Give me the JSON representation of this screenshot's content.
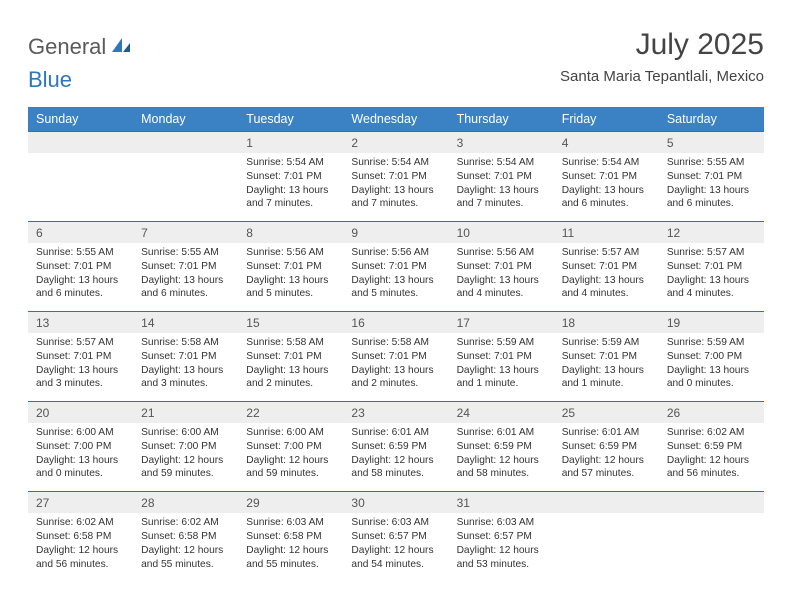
{
  "logo": {
    "text_general": "General",
    "text_blue": "Blue"
  },
  "title": "July 2025",
  "location": "Santa Maria Tepantlali, Mexico",
  "colors": {
    "header_bg": "#3b82c4",
    "header_text": "#ffffff",
    "row_border": "#3b6fa3",
    "daynum_bg": "#eeeeee",
    "body_text": "#333333",
    "logo_gray": "#5a5a5a",
    "logo_blue": "#2f77bb"
  },
  "day_headers": [
    "Sunday",
    "Monday",
    "Tuesday",
    "Wednesday",
    "Thursday",
    "Friday",
    "Saturday"
  ],
  "weeks": [
    [
      {
        "empty": true
      },
      {
        "empty": true
      },
      {
        "day": "1",
        "sunrise": "Sunrise: 5:54 AM",
        "sunset": "Sunset: 7:01 PM",
        "daylight": "Daylight: 13 hours and 7 minutes."
      },
      {
        "day": "2",
        "sunrise": "Sunrise: 5:54 AM",
        "sunset": "Sunset: 7:01 PM",
        "daylight": "Daylight: 13 hours and 7 minutes."
      },
      {
        "day": "3",
        "sunrise": "Sunrise: 5:54 AM",
        "sunset": "Sunset: 7:01 PM",
        "daylight": "Daylight: 13 hours and 7 minutes."
      },
      {
        "day": "4",
        "sunrise": "Sunrise: 5:54 AM",
        "sunset": "Sunset: 7:01 PM",
        "daylight": "Daylight: 13 hours and 6 minutes."
      },
      {
        "day": "5",
        "sunrise": "Sunrise: 5:55 AM",
        "sunset": "Sunset: 7:01 PM",
        "daylight": "Daylight: 13 hours and 6 minutes."
      }
    ],
    [
      {
        "day": "6",
        "sunrise": "Sunrise: 5:55 AM",
        "sunset": "Sunset: 7:01 PM",
        "daylight": "Daylight: 13 hours and 6 minutes."
      },
      {
        "day": "7",
        "sunrise": "Sunrise: 5:55 AM",
        "sunset": "Sunset: 7:01 PM",
        "daylight": "Daylight: 13 hours and 6 minutes."
      },
      {
        "day": "8",
        "sunrise": "Sunrise: 5:56 AM",
        "sunset": "Sunset: 7:01 PM",
        "daylight": "Daylight: 13 hours and 5 minutes."
      },
      {
        "day": "9",
        "sunrise": "Sunrise: 5:56 AM",
        "sunset": "Sunset: 7:01 PM",
        "daylight": "Daylight: 13 hours and 5 minutes."
      },
      {
        "day": "10",
        "sunrise": "Sunrise: 5:56 AM",
        "sunset": "Sunset: 7:01 PM",
        "daylight": "Daylight: 13 hours and 4 minutes."
      },
      {
        "day": "11",
        "sunrise": "Sunrise: 5:57 AM",
        "sunset": "Sunset: 7:01 PM",
        "daylight": "Daylight: 13 hours and 4 minutes."
      },
      {
        "day": "12",
        "sunrise": "Sunrise: 5:57 AM",
        "sunset": "Sunset: 7:01 PM",
        "daylight": "Daylight: 13 hours and 4 minutes."
      }
    ],
    [
      {
        "day": "13",
        "sunrise": "Sunrise: 5:57 AM",
        "sunset": "Sunset: 7:01 PM",
        "daylight": "Daylight: 13 hours and 3 minutes."
      },
      {
        "day": "14",
        "sunrise": "Sunrise: 5:58 AM",
        "sunset": "Sunset: 7:01 PM",
        "daylight": "Daylight: 13 hours and 3 minutes."
      },
      {
        "day": "15",
        "sunrise": "Sunrise: 5:58 AM",
        "sunset": "Sunset: 7:01 PM",
        "daylight": "Daylight: 13 hours and 2 minutes."
      },
      {
        "day": "16",
        "sunrise": "Sunrise: 5:58 AM",
        "sunset": "Sunset: 7:01 PM",
        "daylight": "Daylight: 13 hours and 2 minutes."
      },
      {
        "day": "17",
        "sunrise": "Sunrise: 5:59 AM",
        "sunset": "Sunset: 7:01 PM",
        "daylight": "Daylight: 13 hours and 1 minute."
      },
      {
        "day": "18",
        "sunrise": "Sunrise: 5:59 AM",
        "sunset": "Sunset: 7:01 PM",
        "daylight": "Daylight: 13 hours and 1 minute."
      },
      {
        "day": "19",
        "sunrise": "Sunrise: 5:59 AM",
        "sunset": "Sunset: 7:00 PM",
        "daylight": "Daylight: 13 hours and 0 minutes."
      }
    ],
    [
      {
        "day": "20",
        "sunrise": "Sunrise: 6:00 AM",
        "sunset": "Sunset: 7:00 PM",
        "daylight": "Daylight: 13 hours and 0 minutes."
      },
      {
        "day": "21",
        "sunrise": "Sunrise: 6:00 AM",
        "sunset": "Sunset: 7:00 PM",
        "daylight": "Daylight: 12 hours and 59 minutes."
      },
      {
        "day": "22",
        "sunrise": "Sunrise: 6:00 AM",
        "sunset": "Sunset: 7:00 PM",
        "daylight": "Daylight: 12 hours and 59 minutes."
      },
      {
        "day": "23",
        "sunrise": "Sunrise: 6:01 AM",
        "sunset": "Sunset: 6:59 PM",
        "daylight": "Daylight: 12 hours and 58 minutes."
      },
      {
        "day": "24",
        "sunrise": "Sunrise: 6:01 AM",
        "sunset": "Sunset: 6:59 PM",
        "daylight": "Daylight: 12 hours and 58 minutes."
      },
      {
        "day": "25",
        "sunrise": "Sunrise: 6:01 AM",
        "sunset": "Sunset: 6:59 PM",
        "daylight": "Daylight: 12 hours and 57 minutes."
      },
      {
        "day": "26",
        "sunrise": "Sunrise: 6:02 AM",
        "sunset": "Sunset: 6:59 PM",
        "daylight": "Daylight: 12 hours and 56 minutes."
      }
    ],
    [
      {
        "day": "27",
        "sunrise": "Sunrise: 6:02 AM",
        "sunset": "Sunset: 6:58 PM",
        "daylight": "Daylight: 12 hours and 56 minutes."
      },
      {
        "day": "28",
        "sunrise": "Sunrise: 6:02 AM",
        "sunset": "Sunset: 6:58 PM",
        "daylight": "Daylight: 12 hours and 55 minutes."
      },
      {
        "day": "29",
        "sunrise": "Sunrise: 6:03 AM",
        "sunset": "Sunset: 6:58 PM",
        "daylight": "Daylight: 12 hours and 55 minutes."
      },
      {
        "day": "30",
        "sunrise": "Sunrise: 6:03 AM",
        "sunset": "Sunset: 6:57 PM",
        "daylight": "Daylight: 12 hours and 54 minutes."
      },
      {
        "day": "31",
        "sunrise": "Sunrise: 6:03 AM",
        "sunset": "Sunset: 6:57 PM",
        "daylight": "Daylight: 12 hours and 53 minutes."
      },
      {
        "empty": true
      },
      {
        "empty": true
      }
    ]
  ]
}
